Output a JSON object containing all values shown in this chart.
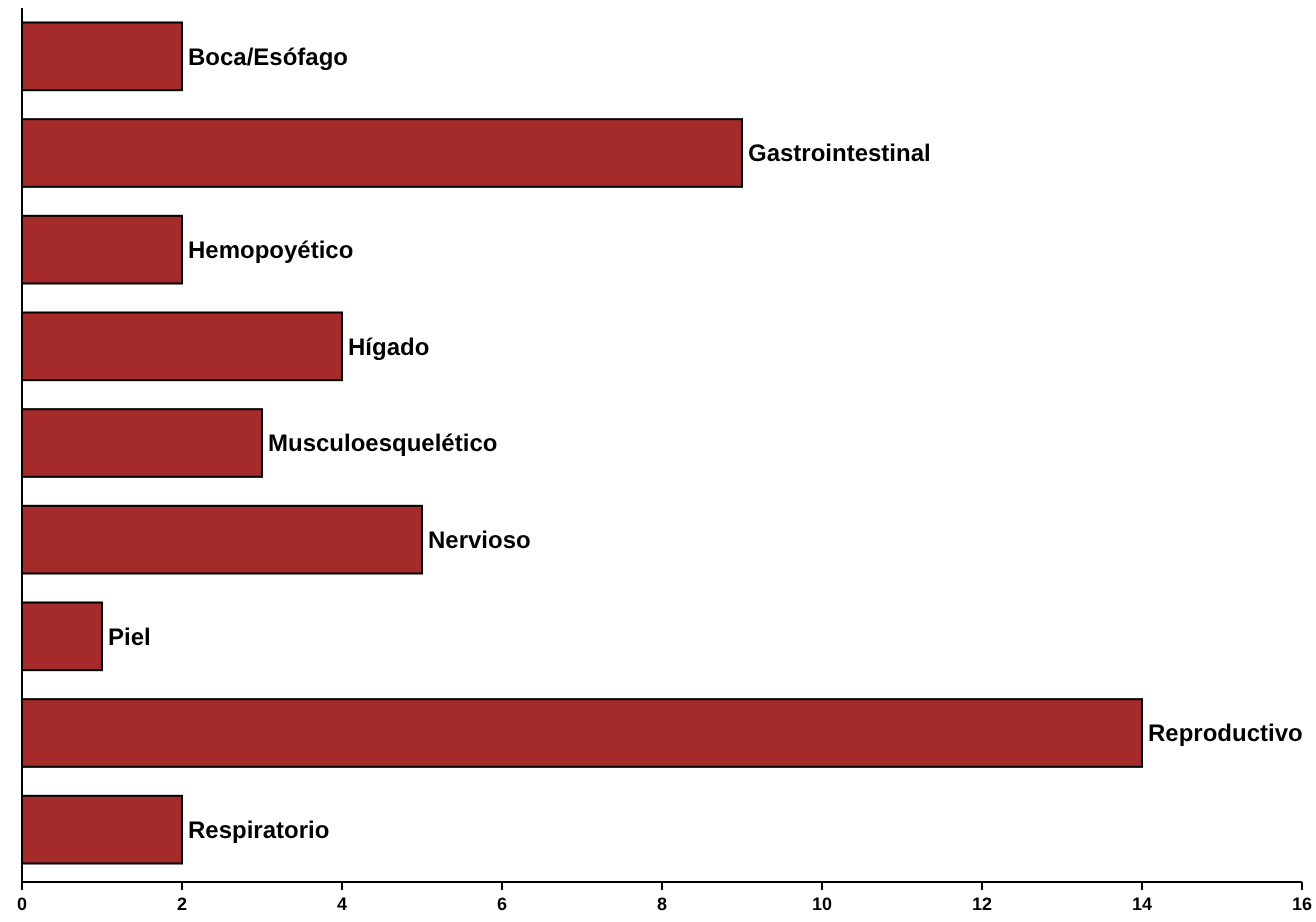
{
  "chart_data": {
    "type": "bar",
    "orientation": "horizontal",
    "categories": [
      "Boca/Esófago",
      "Gastrointestinal",
      "Hemopoyético",
      "Hígado",
      "Musculoesquelético",
      "Nervioso",
      "Piel",
      "Reproductivo",
      "Respiratorio"
    ],
    "values": [
      2,
      9,
      2,
      4,
      3,
      5,
      1,
      14,
      2
    ],
    "color": "#a52a2a",
    "xlim": [
      0,
      16
    ],
    "xticks": [
      0,
      2,
      4,
      6,
      8,
      10,
      12,
      14,
      16
    ],
    "grid": false
  }
}
